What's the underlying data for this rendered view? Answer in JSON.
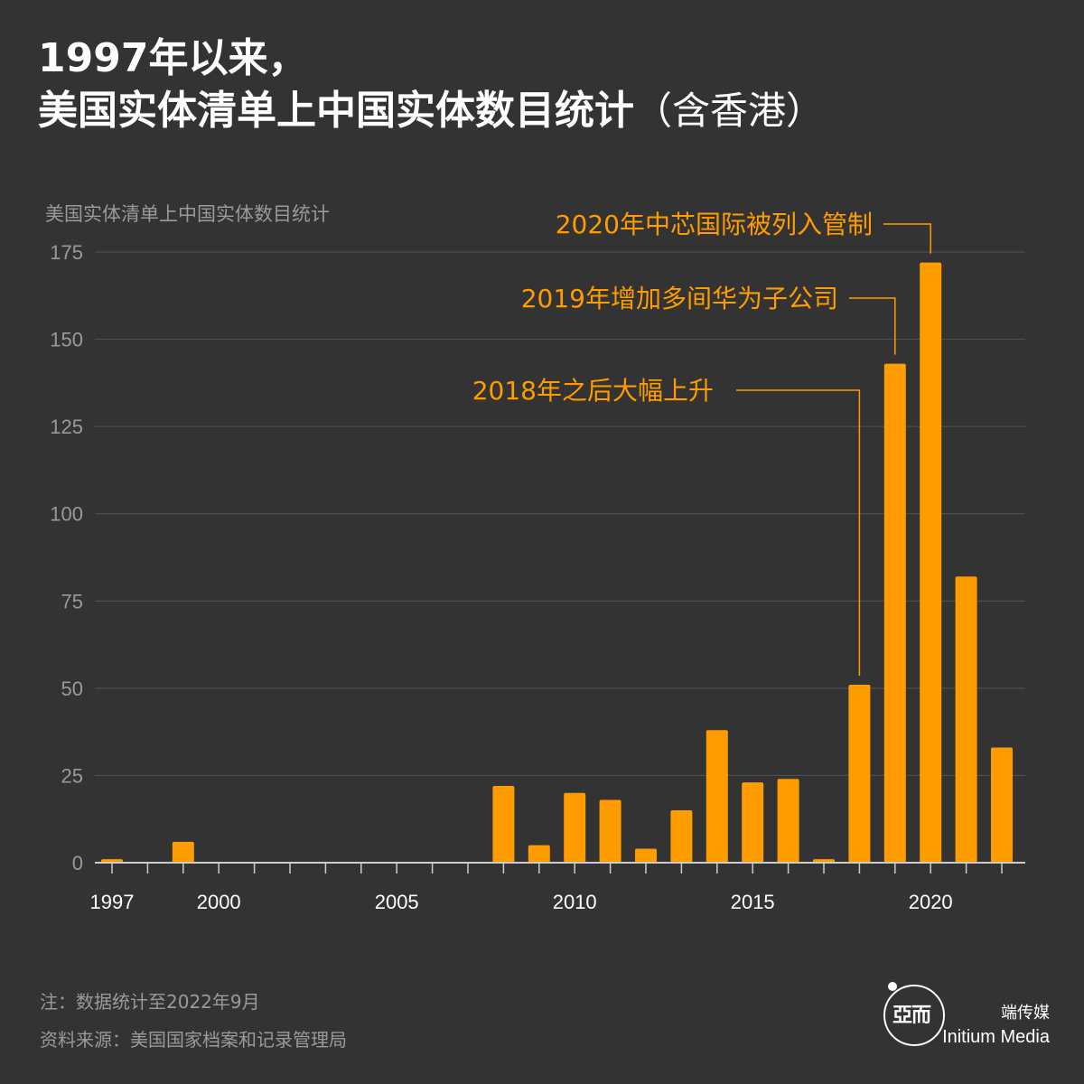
{
  "header": {
    "title_line1": "1997年以来，",
    "title_line2": "美国实体清单上中国实体数目统计",
    "title_suffix": "（含香港）"
  },
  "chart_data": {
    "type": "bar",
    "title": "1997年以来，美国实体清单上中国实体数目统计（含香港）",
    "ylabel": "美国实体清单上中国实体数目统计",
    "xlabel": "",
    "ylim": [
      0,
      175
    ],
    "yticks": [
      0,
      25,
      50,
      75,
      100,
      125,
      150,
      175
    ],
    "xtick_labels": [
      "1997",
      "2000",
      "2005",
      "2010",
      "2015",
      "2020"
    ],
    "grid": "horizontal",
    "bar_color": "#ff9c00",
    "categories": [
      1997,
      1998,
      1999,
      2000,
      2001,
      2002,
      2003,
      2004,
      2005,
      2006,
      2007,
      2008,
      2009,
      2010,
      2011,
      2012,
      2013,
      2014,
      2015,
      2016,
      2017,
      2018,
      2019,
      2020,
      2021,
      2022
    ],
    "values": [
      1,
      0,
      6,
      0,
      0,
      0,
      0,
      0,
      0,
      0,
      0,
      22,
      5,
      20,
      18,
      4,
      15,
      38,
      23,
      24,
      1,
      51,
      143,
      172,
      82,
      33
    ],
    "annotations": [
      {
        "text": "2020年中芯国际被列入管制",
        "year": 2020
      },
      {
        "text": "2019年增加多间华为子公司",
        "year": 2019
      },
      {
        "text": "2018年之后大幅上升",
        "year": 2018
      }
    ]
  },
  "footer": {
    "note": "注：数据统计至2022年9月",
    "source": "资料来源：美国国家档案和记录管理局",
    "brand_cn": "端传媒",
    "brand_en": "Initium Media",
    "logo_icon": "initium-logo-icon"
  }
}
